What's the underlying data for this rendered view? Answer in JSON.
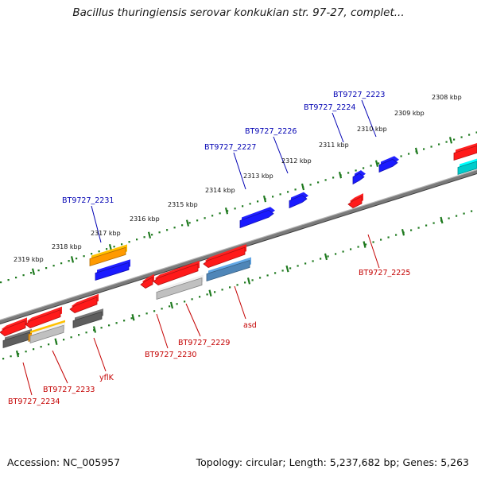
{
  "title": "Bacillus thuringiensis serovar konkukian str. 97-27, complet...",
  "footer": {
    "accession": "Accession: NC_005957",
    "info": "Topology: circular; Length: 5,237,682 bp; Genes: 5,263"
  },
  "colors": {
    "blue": "#1a1aff",
    "red": "#ff1a1a",
    "orange": "#ff9a00",
    "darkgray": "#5e5e5e",
    "lightgray": "#c0c0c0",
    "steel": "#4f86b8",
    "cyan": "#00cccc",
    "backbone": "#7a7a7a",
    "ticks": "#1f7a1f",
    "label_blue": "#0000b3",
    "label_red": "#c40000"
  },
  "ticks": [
    "2308 kbp",
    "2309 kbp",
    "2310 kbp",
    "2311 kbp",
    "2312 kbp",
    "2313 kbp",
    "2314 kbp",
    "2315 kbp",
    "2316 kbp",
    "2317 kbp",
    "2318 kbp",
    "2319 kbp"
  ],
  "gene_labels_top": [
    "BT9727_2223",
    "BT9727_2224",
    "BT9727_2226",
    "BT9727_2227",
    "BT9727_2231"
  ],
  "gene_labels_bottom": [
    "BT9727_2225",
    "asd",
    "BT9727_2229",
    "BT9727_2230",
    "yflK",
    "BT9727_2233",
    "BT9727_2234"
  ]
}
